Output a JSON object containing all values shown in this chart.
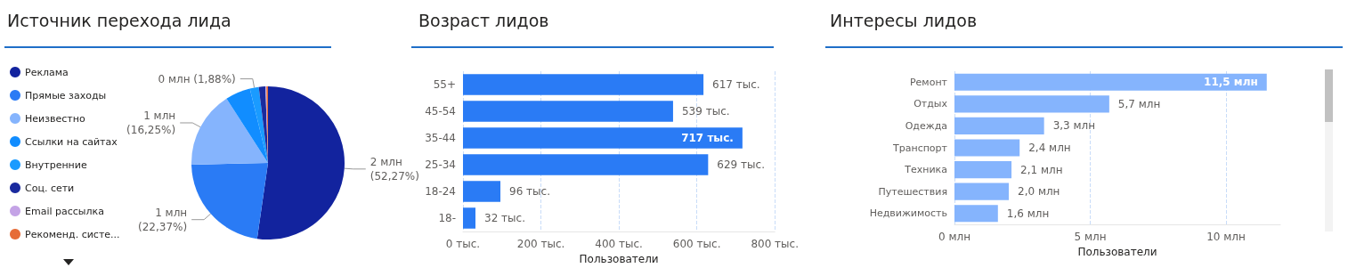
{
  "chart_data": [
    {
      "type": "pie",
      "title": "Источник перехода лида",
      "legend": "left",
      "categories": [
        "Реклама",
        "Прямые заходы",
        "Неизвестно",
        "Ссылки на сайтах",
        "Внутренние",
        "Соц. сети",
        "Email рассылка",
        "Рекоменд. систе..."
      ],
      "values": [
        52.27,
        22.37,
        16.25,
        5.3,
        1.88,
        1.4,
        0.2,
        0.33
      ],
      "colors": [
        "#12239e",
        "#2a7bf5",
        "#85b4fd",
        "#118dff",
        "#1a9bff",
        "#1a2a9e",
        "#c4a3e6",
        "#e66c37"
      ],
      "value_labels": [
        "2 млн\n(52,27%)",
        "1 млн\n(22,37%)",
        "1 млн\n(16,25%)",
        null,
        "0 млн (1,88%)",
        null,
        null,
        null
      ]
    },
    {
      "type": "bar",
      "orientation": "horizontal",
      "title": "Возраст лидов",
      "xlabel": "Пользователи",
      "grid": "x",
      "categories": [
        "55+",
        "45-54",
        "35-44",
        "25-34",
        "18-24",
        "18-"
      ],
      "values": [
        617,
        539,
        717,
        629,
        96,
        32
      ],
      "color": "#2a7bf5",
      "value_labels": [
        "617 тыс.",
        "539 тыс.",
        "717 тыс.",
        "629 тыс.",
        "96 тыс.",
        "32 тыс."
      ],
      "xlim": [
        0,
        800
      ],
      "xticks": [
        {
          "value": 0,
          "label": "0 тыс."
        },
        {
          "value": 200,
          "label": "200 тыс."
        },
        {
          "value": 400,
          "label": "400 тыс."
        },
        {
          "value": 600,
          "label": "600 тыс."
        },
        {
          "value": 800,
          "label": "800 тыс."
        }
      ]
    },
    {
      "type": "bar",
      "orientation": "horizontal",
      "title": "Интересы лидов",
      "xlabel": "Пользователи",
      "grid": "x",
      "categories": [
        "Ремонт",
        "Отдых",
        "Одежда",
        "Транспорт",
        "Техника",
        "Путешествия",
        "Недвижимость"
      ],
      "values": [
        11.5,
        5.7,
        3.3,
        2.4,
        2.1,
        2.0,
        1.6
      ],
      "color": "#85b4fd",
      "value_labels": [
        "11,5 млн",
        "5,7 млн",
        "3,3 млн",
        "2,4 млн",
        "2,1 млн",
        "2,0 млн",
        "1,6 млн"
      ],
      "xlim": [
        0,
        12
      ],
      "xticks": [
        {
          "value": 0,
          "label": "0 млн"
        },
        {
          "value": 5,
          "label": "5 млн"
        },
        {
          "value": 10,
          "label": "10 млн"
        }
      ]
    }
  ]
}
